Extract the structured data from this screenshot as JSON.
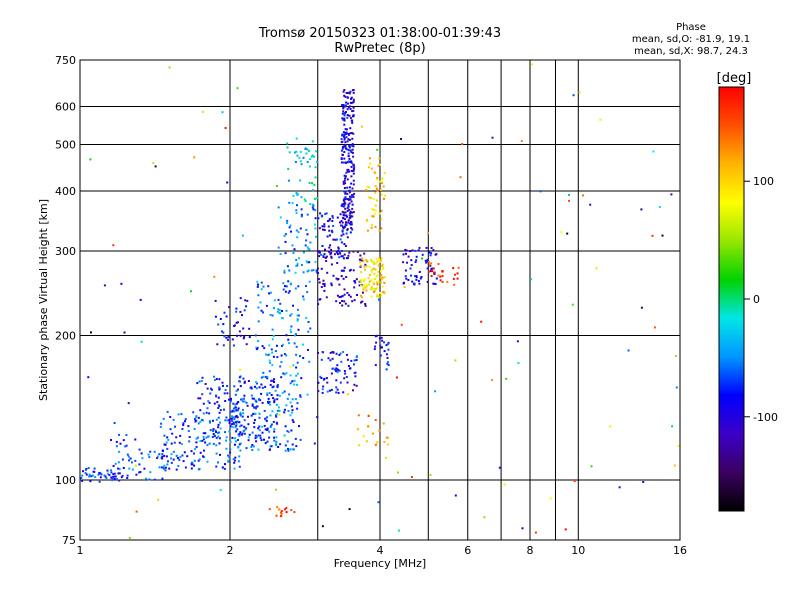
{
  "header": {
    "title_line1": "Tromsø 20150323 01:38:00-01:39:43",
    "title_line2": "RwPretec (8p)"
  },
  "phase_info": {
    "heading": "Phase",
    "line_o": "mean, sd,O: -81.9, 19.1",
    "line_x": "mean, sd,X:  98.7, 24.3"
  },
  "colorbar": {
    "label": "[deg]",
    "ticks": [
      "100",
      "0",
      "-100"
    ],
    "tick_values": [
      100,
      0,
      -100
    ],
    "range": [
      -180,
      180
    ],
    "colors": [
      "#000000",
      "#3a0060",
      "#3c00c8",
      "#0000ff",
      "#0096ff",
      "#00e6e6",
      "#00d200",
      "#96e600",
      "#ffff00",
      "#ffb400",
      "#ff5000",
      "#ff0000"
    ]
  },
  "chart_data": {
    "type": "scatter",
    "xlabel": "Frequency [MHz]",
    "ylabel": "Stationary phase Virtual Height [km]",
    "xscale": "log",
    "yscale": "log",
    "xlim": [
      1,
      16
    ],
    "ylim": [
      75,
      750
    ],
    "x_ticks": [
      1,
      2,
      4,
      6,
      8,
      10,
      16
    ],
    "x_minor": [
      3,
      5,
      7,
      9
    ],
    "y_ticks": [
      75,
      100,
      200,
      300,
      400,
      500,
      600,
      750
    ],
    "grid": true,
    "color_encoding": "phase [deg]",
    "clusters": [
      {
        "freq": [
          1.0,
          1.2
        ],
        "height": [
          99,
          106
        ],
        "phase": -80,
        "count": 45
      },
      {
        "freq": [
          1.15,
          1.5
        ],
        "height": [
          100,
          125
        ],
        "phase": -75,
        "count": 60
      },
      {
        "freq": [
          1.45,
          2.1
        ],
        "height": [
          105,
          140
        ],
        "phase": -70,
        "count": 170
      },
      {
        "freq": [
          1.7,
          2.5
        ],
        "height": [
          120,
          165
        ],
        "phase": -80,
        "count": 170
      },
      {
        "freq": [
          2.0,
          2.8
        ],
        "height": [
          115,
          150
        ],
        "phase": -60,
        "count": 130
      },
      {
        "freq": [
          1.85,
          2.2
        ],
        "height": [
          190,
          240
        ],
        "phase": -95,
        "count": 40
      },
      {
        "freq": [
          2.25,
          2.9
        ],
        "height": [
          150,
          260
        ],
        "phase": -55,
        "count": 140
      },
      {
        "freq": [
          2.5,
          3.0
        ],
        "height": [
          270,
          380
        ],
        "phase": -50,
        "count": 70
      },
      {
        "freq": [
          2.6,
          3.0
        ],
        "height": [
          380,
          520
        ],
        "phase": -25,
        "count": 45
      },
      {
        "freq": [
          3.0,
          3.5
        ],
        "height": [
          290,
          360
        ],
        "phase": -95,
        "count": 80
      },
      {
        "freq": [
          3.35,
          3.55
        ],
        "height": [
          330,
          650
        ],
        "phase": -98,
        "count": 230
      },
      {
        "freq": [
          3.0,
          3.75
        ],
        "height": [
          230,
          300
        ],
        "phase": -110,
        "count": 90
      },
      {
        "freq": [
          3.0,
          3.6
        ],
        "height": [
          150,
          185
        ],
        "phase": -85,
        "count": 70
      },
      {
        "freq": [
          3.65,
          4.1
        ],
        "height": [
          240,
          290
        ],
        "phase": 95,
        "count": 100
      },
      {
        "freq": [
          3.75,
          4.1
        ],
        "height": [
          330,
          470
        ],
        "phase": 100,
        "count": 50
      },
      {
        "freq": [
          3.9,
          4.2
        ],
        "height": [
          170,
          200
        ],
        "phase": -90,
        "count": 25
      },
      {
        "freq": [
          4.45,
          5.2
        ],
        "height": [
          255,
          305
        ],
        "phase": -100,
        "count": 65
      },
      {
        "freq": [
          5.0,
          5.8
        ],
        "height": [
          255,
          285
        ],
        "phase": 160,
        "count": 25
      },
      {
        "freq": [
          2.4,
          2.7
        ],
        "height": [
          84,
          88
        ],
        "phase": 150,
        "count": 15
      },
      {
        "freq": [
          3.6,
          4.2
        ],
        "height": [
          118,
          138
        ],
        "phase": 120,
        "count": 20
      },
      {
        "freq": [
          1.0,
          16.0
        ],
        "height": [
          75,
          750
        ],
        "phase": 0,
        "count": 110
      }
    ]
  }
}
